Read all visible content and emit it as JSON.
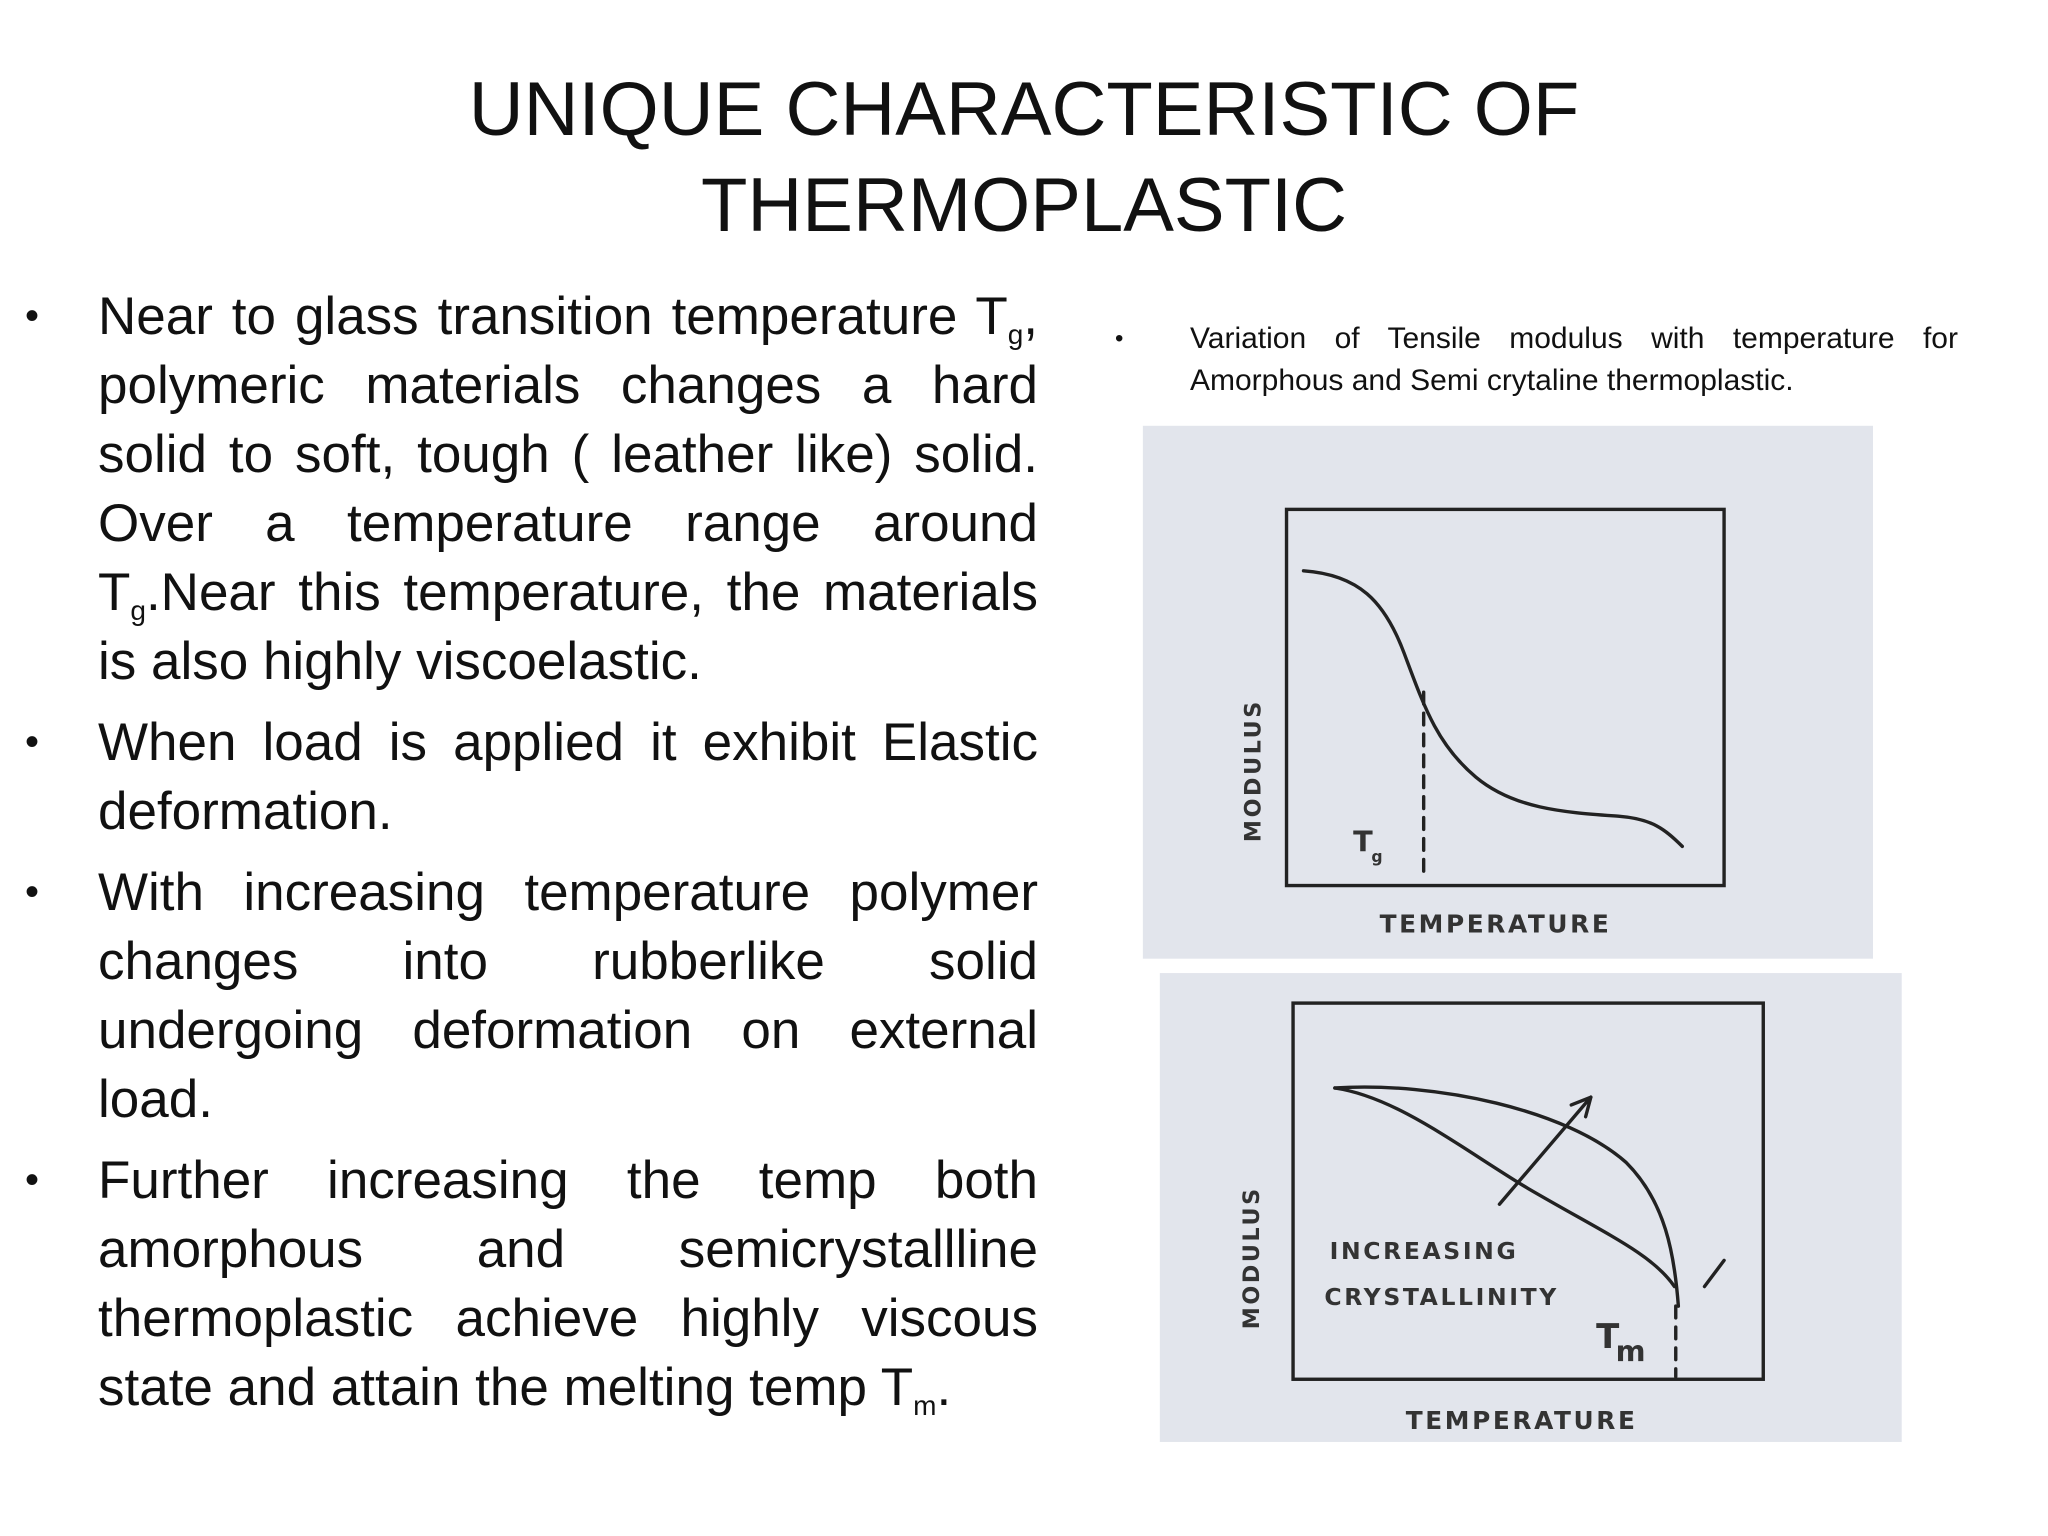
{
  "title": [
    "UNIQUE CHARACTERISTIC OF",
    "THERMOPLASTIC"
  ],
  "bullets": [
    [
      "Near to glass transition temperature T",
      "g",
      ", polymeric materials changes a hard solid to soft, tough ( leather like) solid. Over a temperature range around T",
      "g",
      ".Near this temperature, the materials is also highly viscoelastic."
    ],
    [
      "When load is applied it exhibit Elastic deformation."
    ],
    [
      "With increasing temperature polymer changes into rubberlike solid undergoing deformation on external load."
    ],
    [
      "Further increasing the temp both amorphous and semicrystallline thermoplastic achieve highly viscous state and attain the melting temp T",
      "m",
      "."
    ]
  ],
  "figure": {
    "caption": "Variation of Tensile modulus with temperature for Amorphous and Semi crytaline thermoplastic.",
    "diagrams": [
      {
        "y_label": "MODULUS",
        "x_label": "TEMPERATURE",
        "marker": [
          "T",
          "g"
        ]
      },
      {
        "y_label": "MODULUS",
        "x_label": "TEMPERATURE",
        "annotation": [
          "INCREASING",
          "CRYSTALLINITY"
        ],
        "marker": [
          "T",
          "m"
        ]
      }
    ]
  }
}
